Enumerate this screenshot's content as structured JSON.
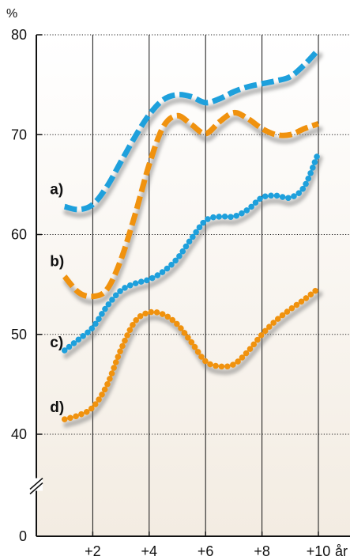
{
  "chart_data": {
    "type": "line",
    "y_unit": "%",
    "x_unit": "år",
    "x_ticks": [
      {
        "value": 2,
        "label": "+2"
      },
      {
        "value": 4,
        "label": "+4"
      },
      {
        "value": 6,
        "label": "+6"
      },
      {
        "value": 8,
        "label": "+8"
      },
      {
        "value": 10,
        "label": "+10"
      }
    ],
    "y_ticks": [
      {
        "value": 0,
        "label": "0"
      },
      {
        "value": 40,
        "label": "40"
      },
      {
        "value": 50,
        "label": "50"
      },
      {
        "value": 60,
        "label": "60"
      },
      {
        "value": 70,
        "label": "70"
      },
      {
        "value": 80,
        "label": "80"
      }
    ],
    "xlim": [
      0,
      11
    ],
    "ylim": [
      0,
      80
    ],
    "y_axis_break": [
      0,
      40
    ],
    "grid": true,
    "background_gradient": [
      "#ffffff",
      "#f3ece2"
    ],
    "series": [
      {
        "label": "a)",
        "label_at": [
          1.1,
          64.5
        ],
        "color": "#1ea0dc",
        "style": "dashed",
        "x": [
          1,
          1.5,
          2,
          2.5,
          3,
          3.5,
          4,
          4.5,
          5,
          5.5,
          6,
          6.5,
          7,
          7.5,
          8,
          8.5,
          9,
          9.5,
          10
        ],
        "y": [
          62.8,
          62.5,
          63.0,
          64.8,
          67.3,
          69.8,
          72.0,
          73.5,
          74.0,
          73.8,
          73.2,
          73.6,
          74.3,
          74.8,
          75.1,
          75.4,
          75.8,
          77.0,
          78.5
        ]
      },
      {
        "label": "b)",
        "label_at": [
          1.1,
          57.3
        ],
        "color": "#f0920e",
        "style": "dashed",
        "x": [
          1,
          1.5,
          2,
          2.5,
          3,
          3.5,
          4,
          4.5,
          5,
          5.5,
          6,
          6.5,
          7,
          7.5,
          8,
          8.5,
          9,
          9.5,
          10
        ],
        "y": [
          55.8,
          54.2,
          53.8,
          54.5,
          57.5,
          62.0,
          67.0,
          70.8,
          71.9,
          71.0,
          70.1,
          71.3,
          72.2,
          71.6,
          70.6,
          70.0,
          70.0,
          70.6,
          71.1
        ]
      },
      {
        "label": "c)",
        "label_at": [
          1.1,
          49.2
        ],
        "color": "#1ea0dc",
        "style": "dotted",
        "x": [
          1,
          1.5,
          2,
          2.5,
          3,
          3.5,
          4,
          4.5,
          5,
          5.5,
          6,
          6.5,
          7,
          7.5,
          8,
          8.5,
          9,
          9.5,
          10
        ],
        "y": [
          48.4,
          49.5,
          50.7,
          52.8,
          54.4,
          55.1,
          55.5,
          56.3,
          57.6,
          59.6,
          61.4,
          61.8,
          61.8,
          62.5,
          63.7,
          63.9,
          63.7,
          64.8,
          68.2
        ]
      },
      {
        "label": "d)",
        "label_at": [
          1.1,
          42.7
        ],
        "color": "#f0920e",
        "style": "dotted",
        "x": [
          1,
          1.5,
          2,
          2.5,
          3,
          3.5,
          4,
          4.5,
          5,
          5.5,
          6,
          6.5,
          7,
          7.5,
          8,
          8.5,
          9,
          9.5,
          10
        ],
        "y": [
          41.5,
          41.9,
          42.7,
          44.9,
          48.5,
          51.3,
          52.2,
          52.0,
          51.0,
          49.2,
          47.3,
          46.8,
          47.0,
          48.3,
          50.0,
          51.4,
          52.5,
          53.5,
          54.6
        ]
      }
    ]
  }
}
